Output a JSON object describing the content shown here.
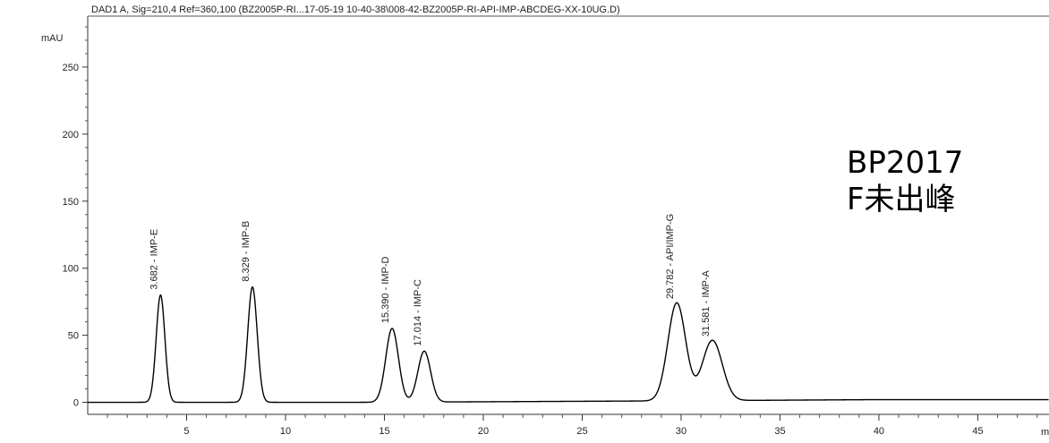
{
  "chart_data": {
    "type": "line",
    "title": "DAD1 A, Sig=210,4 Ref=360,100 (BZ2005P-RI...17-05-19 10-40-38\\008-42-BZ2005P-RI-API-IMP-ABCDEG-XX-10UG.D)",
    "ylabel": "mAU",
    "xlabel": "m",
    "xlim": [
      0,
      48.6
    ],
    "ylim": [
      -9,
      288
    ],
    "xticks": [
      5,
      10,
      15,
      20,
      25,
      30,
      35,
      40,
      45
    ],
    "yticks": [
      0,
      50,
      100,
      150,
      200,
      250
    ],
    "grid": false,
    "series": [
      {
        "peaks": [
          {
            "rt": 3.682,
            "height": 80,
            "width": 0.22,
            "label": "3.682 - IMP-E"
          },
          {
            "rt": 8.329,
            "height": 86,
            "width": 0.24,
            "label": "8.329 - IMP-B"
          },
          {
            "rt": 15.39,
            "height": 55,
            "width": 0.32,
            "label": "15.390 - IMP-D"
          },
          {
            "rt": 17.014,
            "height": 38,
            "width": 0.32,
            "label": "17.014 - IMP-C"
          },
          {
            "rt": 29.782,
            "height": 73,
            "width": 0.45,
            "label": "29.782 - API/IMP-G"
          },
          {
            "rt": 31.581,
            "height": 45,
            "width": 0.5,
            "label": "31.581 - IMP-A"
          }
        ],
        "baseline": [
          [
            0,
            0
          ],
          [
            14.5,
            0
          ],
          [
            28.5,
            1
          ],
          [
            40,
            2
          ],
          [
            48.6,
            2
          ]
        ],
        "color": "#000000"
      }
    ]
  },
  "annotation": {
    "line1": "BP2017",
    "line2": "F未出峰"
  }
}
